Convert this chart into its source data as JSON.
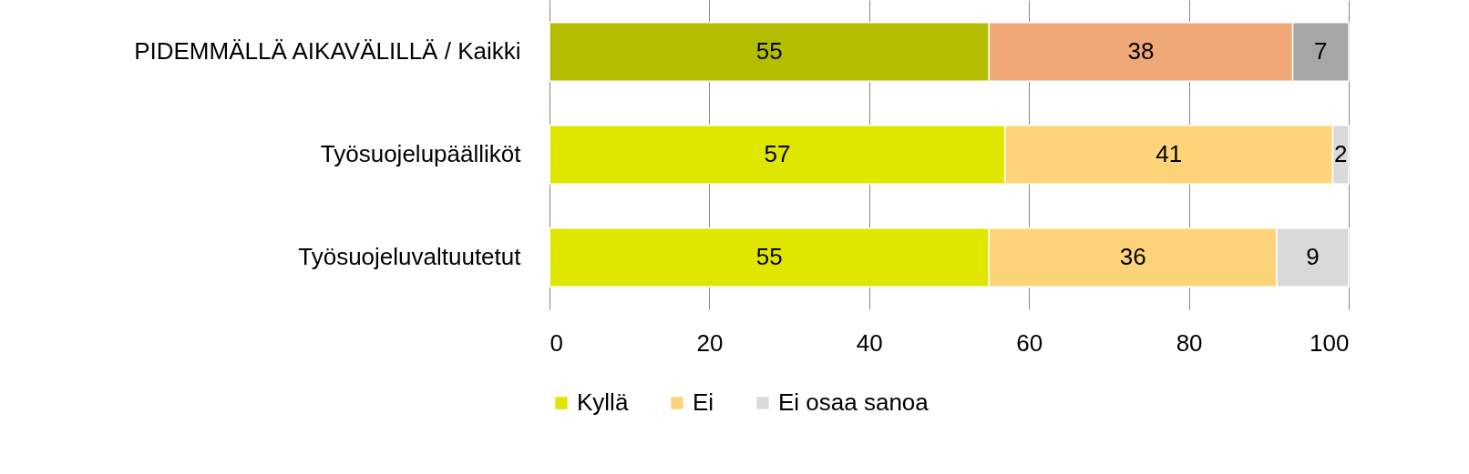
{
  "chart_data": {
    "type": "bar",
    "orientation": "horizontal",
    "stacked": true,
    "categories": [
      "PIDEMMÄLLÄ AIKAVÄLILLÄ / Kaikki",
      "Työsuojelupäälliköt",
      "Työsuojeluvaltuutetut"
    ],
    "series": [
      {
        "name": "Kyllä",
        "color": "#dfe600",
        "colors": [
          "#b5bd00",
          "#dfe600",
          "#dfe600"
        ],
        "values": [
          55,
          57,
          55
        ]
      },
      {
        "name": "Ei",
        "color": "#fdd47a",
        "colors": [
          "#f0a878",
          "#fdd47a",
          "#fdd47a"
        ],
        "values": [
          38,
          41,
          36
        ]
      },
      {
        "name": "Ei osaa sanoa",
        "color": "#d9d9d9",
        "colors": [
          "#a6a6a6",
          "#d9d9d9",
          "#d9d9d9"
        ],
        "values": [
          7,
          2,
          9
        ]
      }
    ],
    "xlim": [
      0,
      100
    ],
    "xticks": [
      0,
      20,
      40,
      60,
      80,
      100
    ],
    "grid": "x",
    "legend": "bottom",
    "data_labels": true
  }
}
